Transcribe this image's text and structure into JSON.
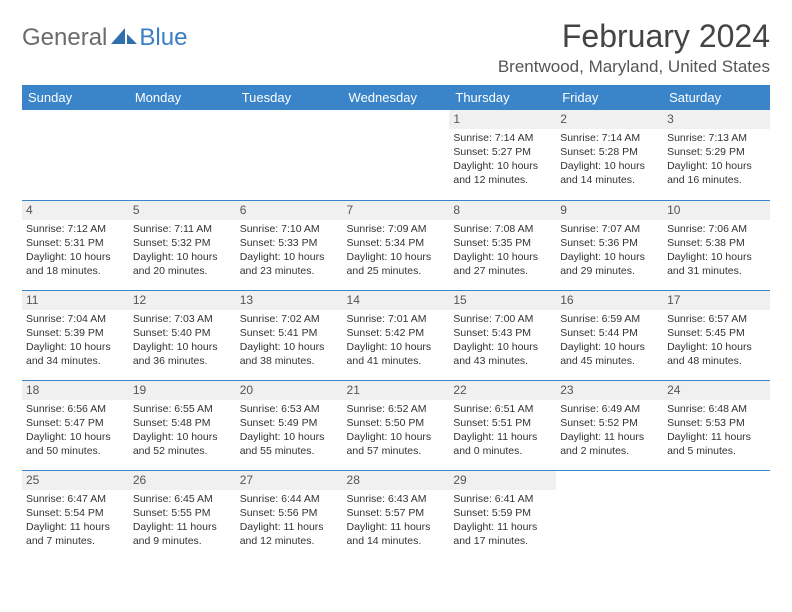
{
  "logo": {
    "general": "General",
    "blue": "Blue"
  },
  "title": "February 2024",
  "location": "Brentwood, Maryland, United States",
  "headers": [
    "Sunday",
    "Monday",
    "Tuesday",
    "Wednesday",
    "Thursday",
    "Friday",
    "Saturday"
  ],
  "colors": {
    "header_bg": "#3a85c9",
    "header_text": "#ffffff",
    "daynum_bg": "#f0f0f0",
    "divider": "#3a85c9",
    "logo_general": "#6b6b6b",
    "logo_blue": "#3a7fc4",
    "body_text": "#333333"
  },
  "weeks": [
    [
      null,
      null,
      null,
      null,
      {
        "n": "1",
        "sr": "Sunrise: 7:14 AM",
        "ss": "Sunset: 5:27 PM",
        "d1": "Daylight: 10 hours",
        "d2": "and 12 minutes."
      },
      {
        "n": "2",
        "sr": "Sunrise: 7:14 AM",
        "ss": "Sunset: 5:28 PM",
        "d1": "Daylight: 10 hours",
        "d2": "and 14 minutes."
      },
      {
        "n": "3",
        "sr": "Sunrise: 7:13 AM",
        "ss": "Sunset: 5:29 PM",
        "d1": "Daylight: 10 hours",
        "d2": "and 16 minutes."
      }
    ],
    [
      {
        "n": "4",
        "sr": "Sunrise: 7:12 AM",
        "ss": "Sunset: 5:31 PM",
        "d1": "Daylight: 10 hours",
        "d2": "and 18 minutes."
      },
      {
        "n": "5",
        "sr": "Sunrise: 7:11 AM",
        "ss": "Sunset: 5:32 PM",
        "d1": "Daylight: 10 hours",
        "d2": "and 20 minutes."
      },
      {
        "n": "6",
        "sr": "Sunrise: 7:10 AM",
        "ss": "Sunset: 5:33 PM",
        "d1": "Daylight: 10 hours",
        "d2": "and 23 minutes."
      },
      {
        "n": "7",
        "sr": "Sunrise: 7:09 AM",
        "ss": "Sunset: 5:34 PM",
        "d1": "Daylight: 10 hours",
        "d2": "and 25 minutes."
      },
      {
        "n": "8",
        "sr": "Sunrise: 7:08 AM",
        "ss": "Sunset: 5:35 PM",
        "d1": "Daylight: 10 hours",
        "d2": "and 27 minutes."
      },
      {
        "n": "9",
        "sr": "Sunrise: 7:07 AM",
        "ss": "Sunset: 5:36 PM",
        "d1": "Daylight: 10 hours",
        "d2": "and 29 minutes."
      },
      {
        "n": "10",
        "sr": "Sunrise: 7:06 AM",
        "ss": "Sunset: 5:38 PM",
        "d1": "Daylight: 10 hours",
        "d2": "and 31 minutes."
      }
    ],
    [
      {
        "n": "11",
        "sr": "Sunrise: 7:04 AM",
        "ss": "Sunset: 5:39 PM",
        "d1": "Daylight: 10 hours",
        "d2": "and 34 minutes."
      },
      {
        "n": "12",
        "sr": "Sunrise: 7:03 AM",
        "ss": "Sunset: 5:40 PM",
        "d1": "Daylight: 10 hours",
        "d2": "and 36 minutes."
      },
      {
        "n": "13",
        "sr": "Sunrise: 7:02 AM",
        "ss": "Sunset: 5:41 PM",
        "d1": "Daylight: 10 hours",
        "d2": "and 38 minutes."
      },
      {
        "n": "14",
        "sr": "Sunrise: 7:01 AM",
        "ss": "Sunset: 5:42 PM",
        "d1": "Daylight: 10 hours",
        "d2": "and 41 minutes."
      },
      {
        "n": "15",
        "sr": "Sunrise: 7:00 AM",
        "ss": "Sunset: 5:43 PM",
        "d1": "Daylight: 10 hours",
        "d2": "and 43 minutes."
      },
      {
        "n": "16",
        "sr": "Sunrise: 6:59 AM",
        "ss": "Sunset: 5:44 PM",
        "d1": "Daylight: 10 hours",
        "d2": "and 45 minutes."
      },
      {
        "n": "17",
        "sr": "Sunrise: 6:57 AM",
        "ss": "Sunset: 5:45 PM",
        "d1": "Daylight: 10 hours",
        "d2": "and 48 minutes."
      }
    ],
    [
      {
        "n": "18",
        "sr": "Sunrise: 6:56 AM",
        "ss": "Sunset: 5:47 PM",
        "d1": "Daylight: 10 hours",
        "d2": "and 50 minutes."
      },
      {
        "n": "19",
        "sr": "Sunrise: 6:55 AM",
        "ss": "Sunset: 5:48 PM",
        "d1": "Daylight: 10 hours",
        "d2": "and 52 minutes."
      },
      {
        "n": "20",
        "sr": "Sunrise: 6:53 AM",
        "ss": "Sunset: 5:49 PM",
        "d1": "Daylight: 10 hours",
        "d2": "and 55 minutes."
      },
      {
        "n": "21",
        "sr": "Sunrise: 6:52 AM",
        "ss": "Sunset: 5:50 PM",
        "d1": "Daylight: 10 hours",
        "d2": "and 57 minutes."
      },
      {
        "n": "22",
        "sr": "Sunrise: 6:51 AM",
        "ss": "Sunset: 5:51 PM",
        "d1": "Daylight: 11 hours",
        "d2": "and 0 minutes."
      },
      {
        "n": "23",
        "sr": "Sunrise: 6:49 AM",
        "ss": "Sunset: 5:52 PM",
        "d1": "Daylight: 11 hours",
        "d2": "and 2 minutes."
      },
      {
        "n": "24",
        "sr": "Sunrise: 6:48 AM",
        "ss": "Sunset: 5:53 PM",
        "d1": "Daylight: 11 hours",
        "d2": "and 5 minutes."
      }
    ],
    [
      {
        "n": "25",
        "sr": "Sunrise: 6:47 AM",
        "ss": "Sunset: 5:54 PM",
        "d1": "Daylight: 11 hours",
        "d2": "and 7 minutes."
      },
      {
        "n": "26",
        "sr": "Sunrise: 6:45 AM",
        "ss": "Sunset: 5:55 PM",
        "d1": "Daylight: 11 hours",
        "d2": "and 9 minutes."
      },
      {
        "n": "27",
        "sr": "Sunrise: 6:44 AM",
        "ss": "Sunset: 5:56 PM",
        "d1": "Daylight: 11 hours",
        "d2": "and 12 minutes."
      },
      {
        "n": "28",
        "sr": "Sunrise: 6:43 AM",
        "ss": "Sunset: 5:57 PM",
        "d1": "Daylight: 11 hours",
        "d2": "and 14 minutes."
      },
      {
        "n": "29",
        "sr": "Sunrise: 6:41 AM",
        "ss": "Sunset: 5:59 PM",
        "d1": "Daylight: 11 hours",
        "d2": "and 17 minutes."
      },
      null,
      null
    ]
  ]
}
